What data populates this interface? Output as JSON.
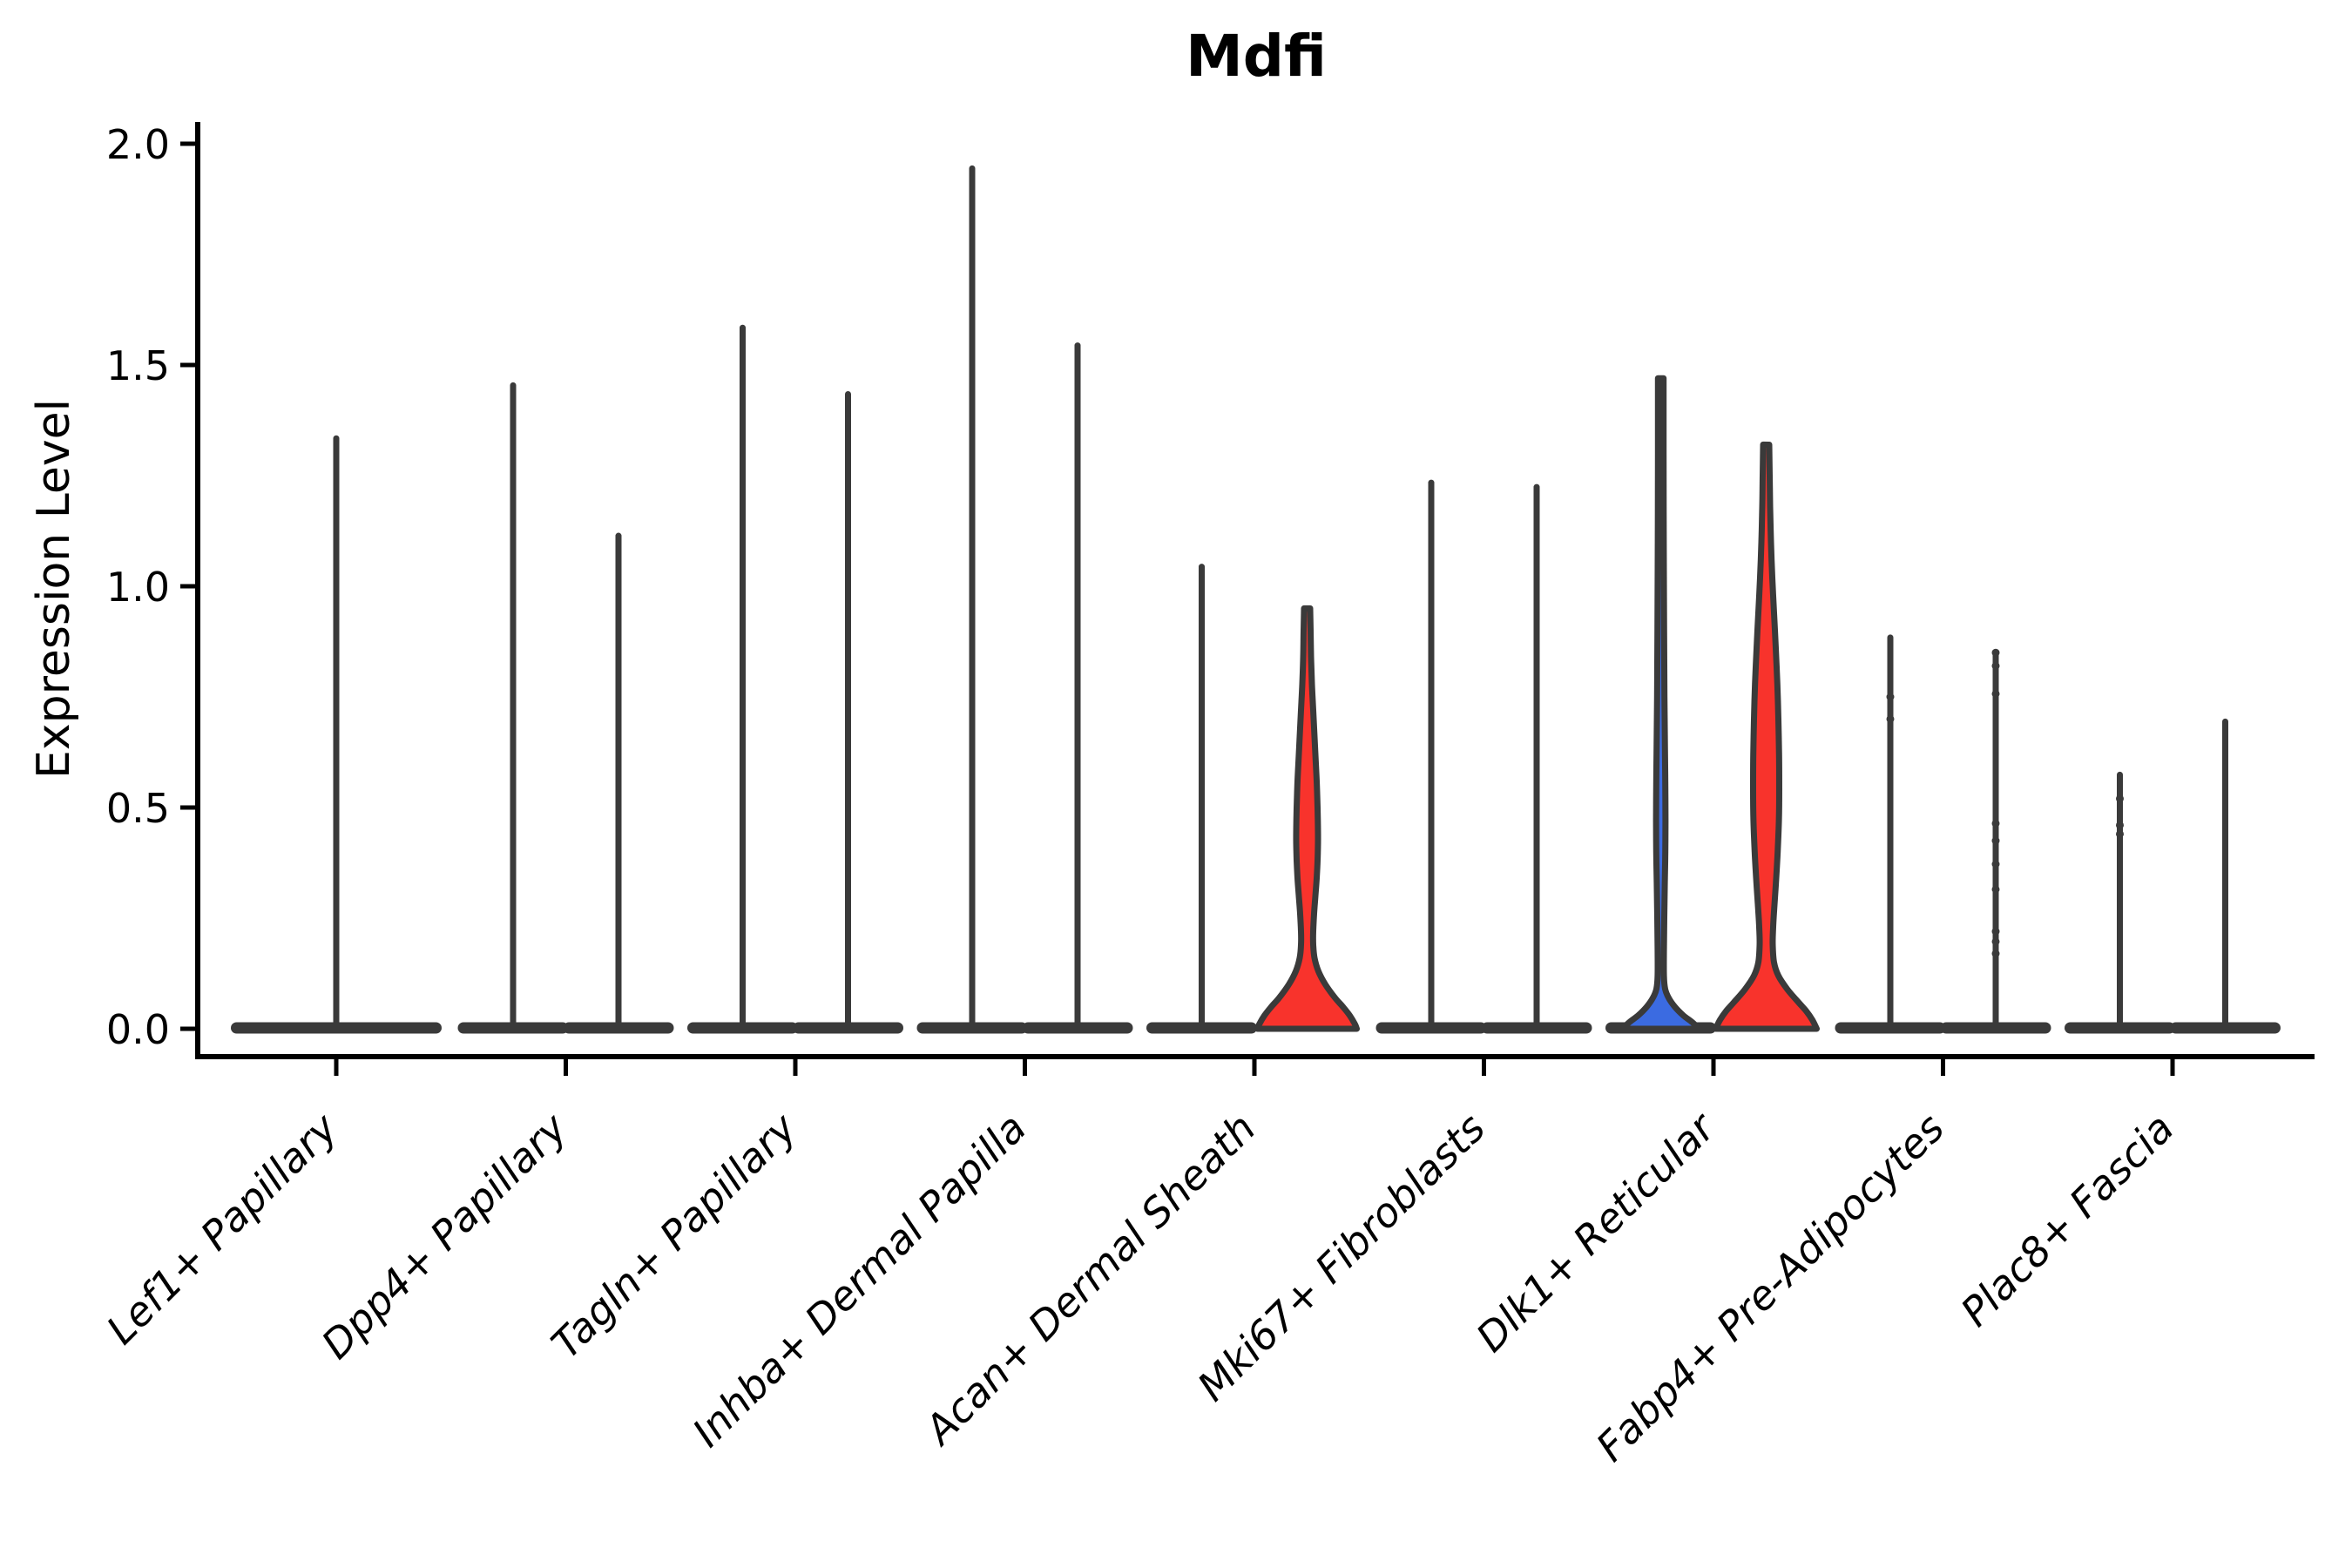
{
  "chart_data": {
    "type": "violin",
    "title": "Mdfi",
    "ylabel": "Expression Level",
    "ylim": [
      0.0,
      2.0
    ],
    "yticks": [
      "0.0",
      "0.5",
      "1.0",
      "1.5",
      "2.0"
    ],
    "ytick_values": [
      0.0,
      0.5,
      1.0,
      1.5,
      2.0
    ],
    "grid": false,
    "legend": "none",
    "categories": [
      "Lef1+ Papillary",
      "Dpp4+ Papillary",
      "Tagln+ Papillary",
      "Inhba+ Dermal Papilla",
      "Acan+ Dermal Sheath",
      "Mki67+ Fibroblasts",
      "Dlk1+ Reticular",
      "Fabp4+ Pre-Adipocytes",
      "Plac8+ Fascia"
    ],
    "colors": {
      "red_fill": "#f8332c",
      "blue_fill": "#3b6be1",
      "violin_outline": "#3a3a3a",
      "axis": "#000000",
      "background": "#ffffff"
    },
    "violins": [
      {
        "category": "Lef1+ Papillary",
        "side": "full",
        "max_expression": 1.34,
        "base_bar": true
      },
      {
        "category": "Dpp4+ Papillary",
        "side": "left",
        "max_expression": 1.46,
        "base_bar": true
      },
      {
        "category": "Dpp4+ Papillary",
        "side": "right",
        "max_expression": 1.12,
        "base_bar": true
      },
      {
        "category": "Tagln+ Papillary",
        "side": "left",
        "max_expression": 1.59,
        "base_bar": true
      },
      {
        "category": "Tagln+ Papillary",
        "side": "right",
        "max_expression": 1.44,
        "base_bar": true
      },
      {
        "category": "Inhba+ Dermal Papilla",
        "side": "left",
        "max_expression": 1.95,
        "base_bar": true
      },
      {
        "category": "Inhba+ Dermal Papilla",
        "side": "right",
        "max_expression": 1.55,
        "base_bar": true
      },
      {
        "category": "Acan+ Dermal Sheath",
        "side": "left",
        "max_expression": 1.05,
        "base_bar": true
      },
      {
        "category": "Acan+ Dermal Sheath",
        "side": "right",
        "max_expression": 0.95,
        "base_bar": false,
        "fill": "#f8332c",
        "profile": [
          [
            0.95,
            3.5
          ],
          [
            0.9,
            4
          ],
          [
            0.84,
            4.5
          ],
          [
            0.78,
            5.5
          ],
          [
            0.72,
            7
          ],
          [
            0.66,
            8.5
          ],
          [
            0.6,
            10
          ],
          [
            0.55,
            11.2
          ],
          [
            0.5,
            12
          ],
          [
            0.46,
            12.4
          ],
          [
            0.42,
            12.5
          ],
          [
            0.38,
            12
          ],
          [
            0.34,
            11
          ],
          [
            0.3,
            9.5
          ],
          [
            0.26,
            8
          ],
          [
            0.22,
            7
          ],
          [
            0.19,
            7
          ],
          [
            0.16,
            8.5
          ],
          [
            0.13,
            13
          ],
          [
            0.1,
            21
          ],
          [
            0.07,
            32
          ],
          [
            0.05,
            41
          ],
          [
            0.03,
            49
          ],
          [
            0.01,
            55
          ],
          [
            0.0,
            57
          ]
        ]
      },
      {
        "category": "Mki67+ Fibroblasts",
        "side": "left",
        "max_expression": 1.24,
        "base_bar": true
      },
      {
        "category": "Mki67+ Fibroblasts",
        "side": "right",
        "max_expression": 1.23,
        "base_bar": true
      },
      {
        "category": "Dlk1+ Reticular",
        "side": "left",
        "max_expression": 1.47,
        "base_bar": true,
        "fill": "#3b6be1",
        "profile": [
          [
            1.47,
            3.2
          ],
          [
            1.3,
            3.2
          ],
          [
            1.1,
            3.4
          ],
          [
            0.9,
            3.8
          ],
          [
            0.75,
            4.2
          ],
          [
            0.63,
            4.8
          ],
          [
            0.55,
            5.2
          ],
          [
            0.47,
            5.4
          ],
          [
            0.4,
            5.2
          ],
          [
            0.33,
            4.6
          ],
          [
            0.25,
            4.0
          ],
          [
            0.18,
            3.6
          ],
          [
            0.12,
            3.6
          ],
          [
            0.09,
            5
          ],
          [
            0.07,
            9
          ],
          [
            0.05,
            16
          ],
          [
            0.03,
            26
          ],
          [
            0.015,
            36
          ],
          [
            0.0,
            44
          ]
        ]
      },
      {
        "category": "Dlk1+ Reticular",
        "side": "right",
        "max_expression": 1.32,
        "base_bar": false,
        "fill": "#f8332c",
        "profile": [
          [
            1.32,
            3.5
          ],
          [
            1.25,
            4
          ],
          [
            1.18,
            4.5
          ],
          [
            1.1,
            5.5
          ],
          [
            1.02,
            7
          ],
          [
            0.94,
            9
          ],
          [
            0.86,
            11
          ],
          [
            0.78,
            12.8
          ],
          [
            0.7,
            14
          ],
          [
            0.62,
            14.8
          ],
          [
            0.54,
            15
          ],
          [
            0.47,
            14.6
          ],
          [
            0.4,
            13.2
          ],
          [
            0.34,
            11.5
          ],
          [
            0.28,
            9.5
          ],
          [
            0.23,
            8
          ],
          [
            0.19,
            7.5
          ],
          [
            0.15,
            9
          ],
          [
            0.12,
            14
          ],
          [
            0.09,
            24
          ],
          [
            0.06,
            37
          ],
          [
            0.04,
            46
          ],
          [
            0.02,
            53
          ],
          [
            0.0,
            58
          ]
        ]
      },
      {
        "category": "Fabp4+ Pre-Adipocytes",
        "side": "left",
        "max_expression": 0.89,
        "base_bar": true,
        "dots": [
          0.75,
          0.7
        ]
      },
      {
        "category": "Fabp4+ Pre-Adipocytes",
        "side": "right",
        "max_expression": 0.85,
        "base_bar": true,
        "dots": [
          0.85,
          0.82,
          0.757,
          0.464,
          0.425,
          0.372,
          0.315,
          0.22,
          0.197,
          0.17
        ]
      },
      {
        "category": "Plac8+ Fascia",
        "side": "left",
        "max_expression": 0.58,
        "base_bar": true,
        "dots": [
          0.52,
          0.46,
          0.44
        ]
      },
      {
        "category": "Plac8+ Fascia",
        "side": "right",
        "max_expression": 0.7,
        "base_bar": true
      }
    ]
  }
}
